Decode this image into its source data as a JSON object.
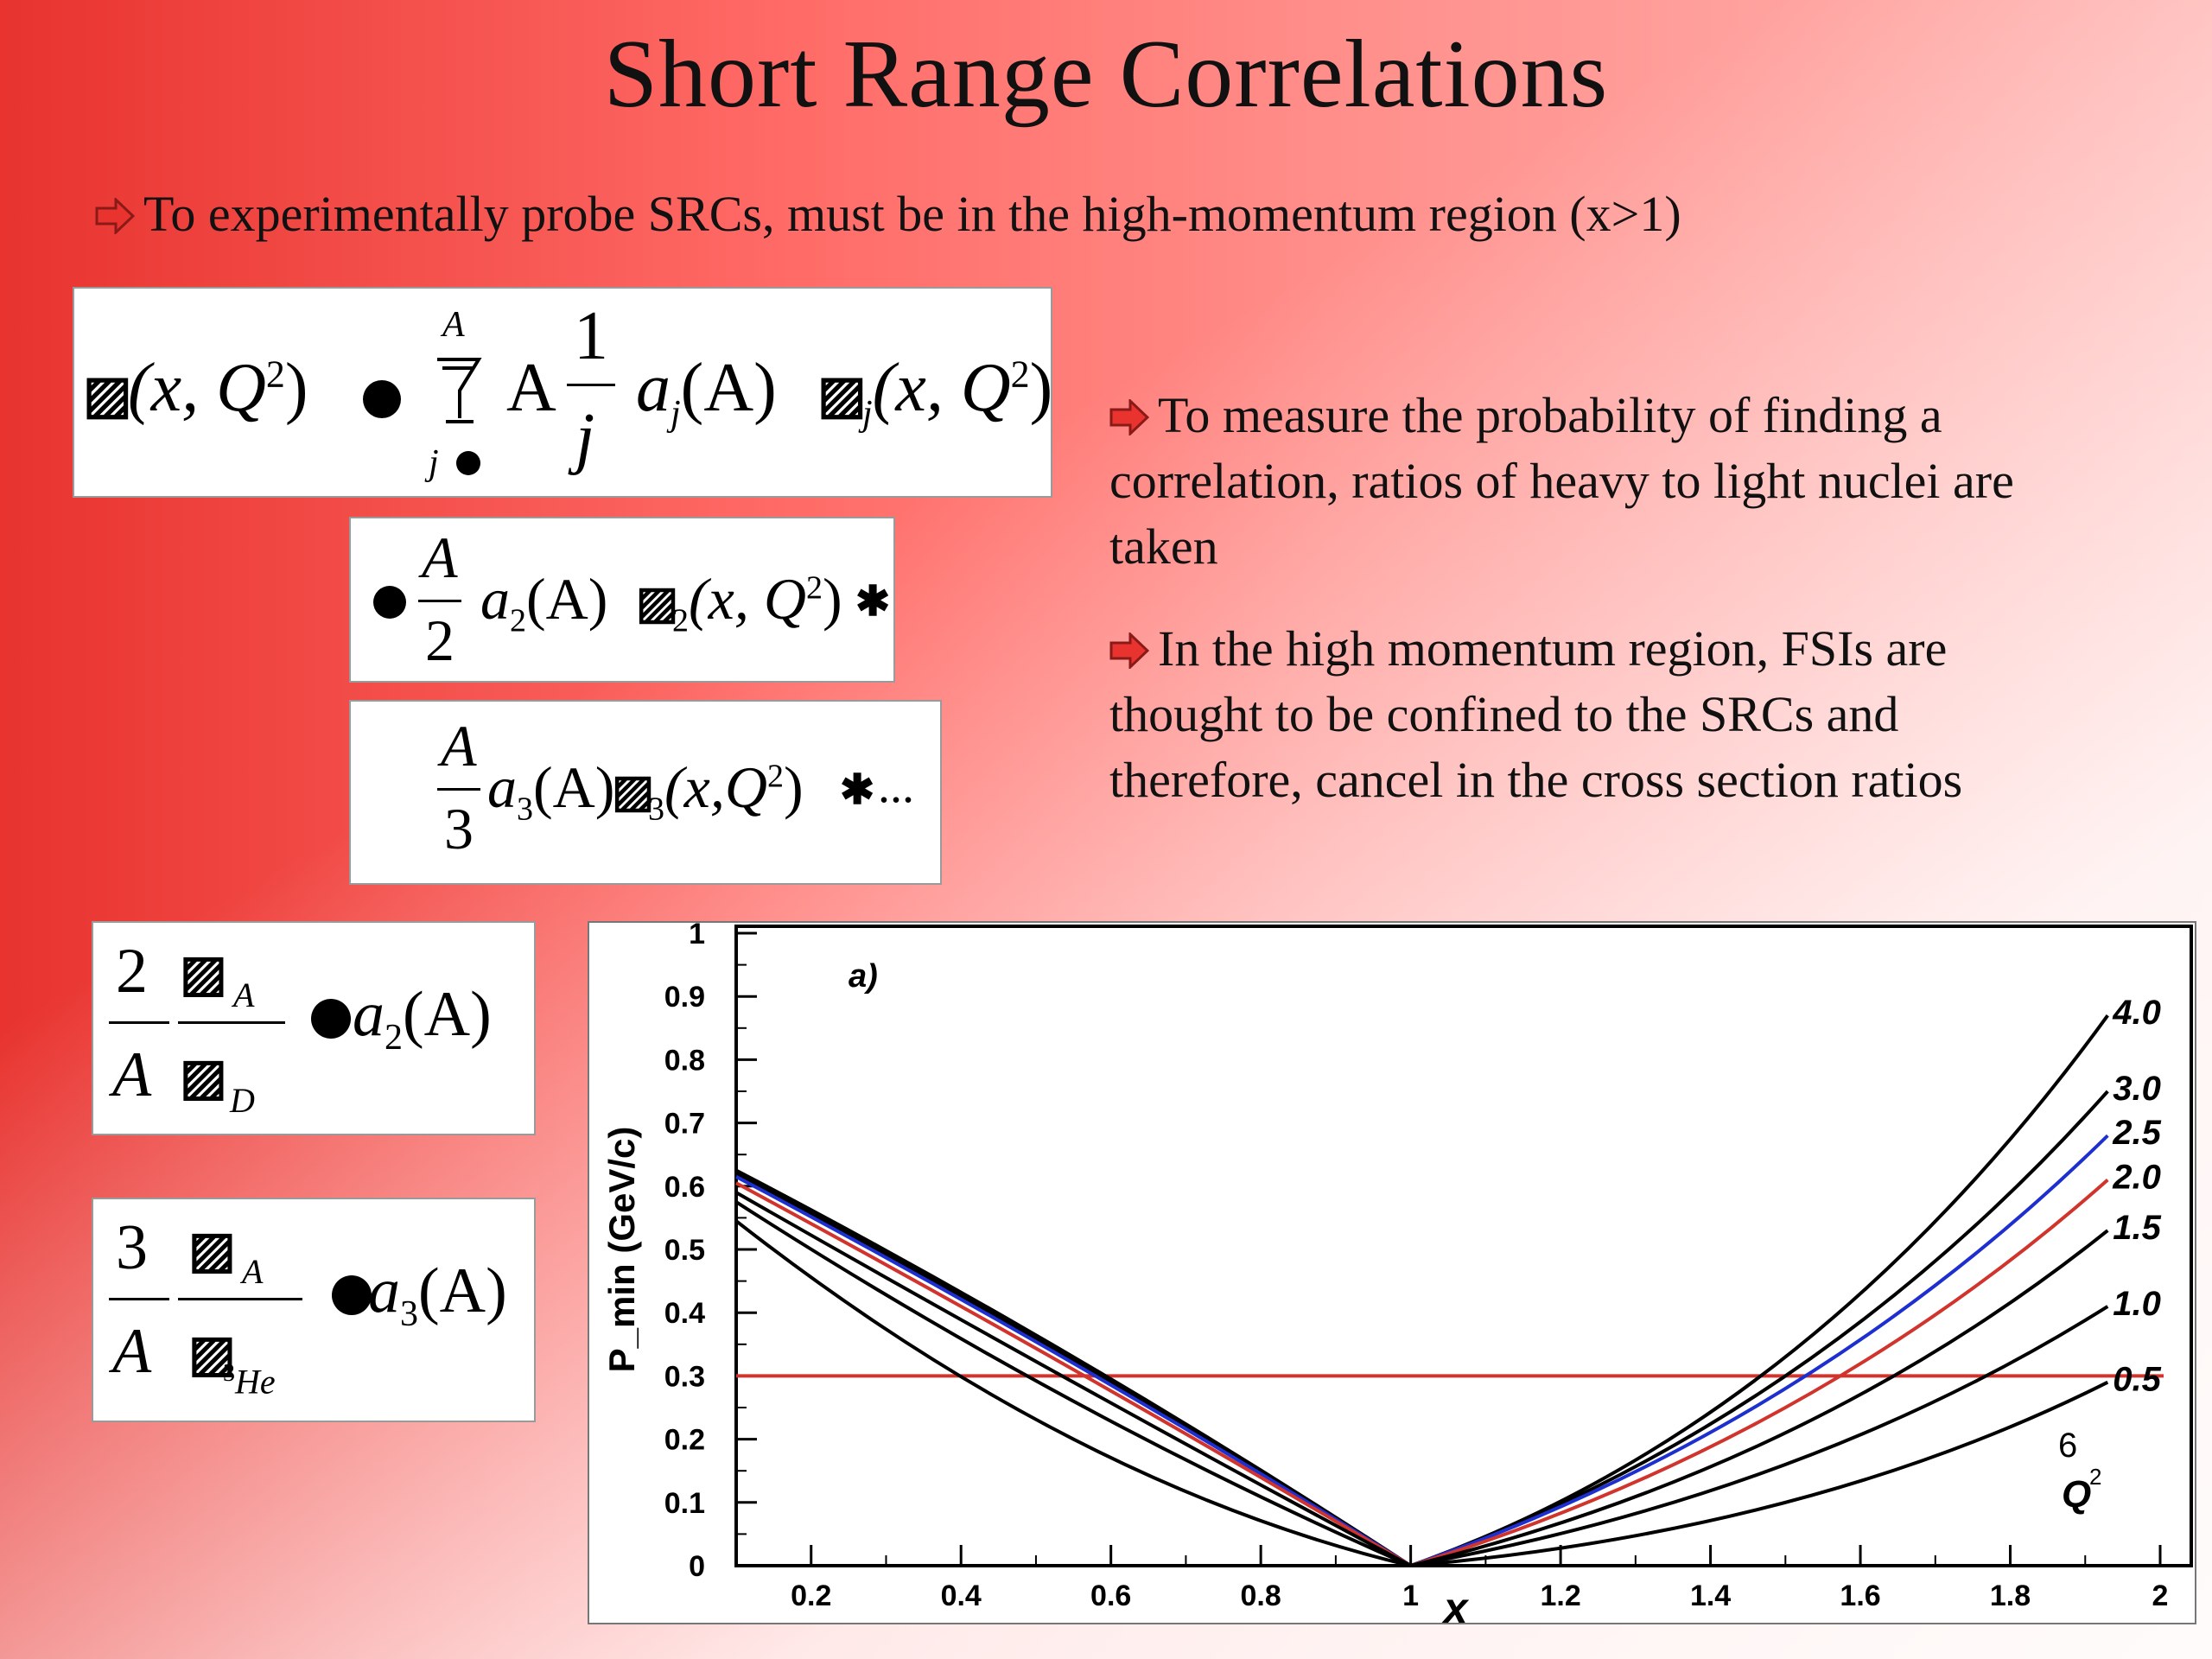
{
  "slide": {
    "title": "Short Range Correlations",
    "bullets": [
      "To experimentally probe SRCs, must be in the high-momentum region (x>1)",
      "To measure the probability of finding a",
      "correlation, ratios of heavy to light nuclei are",
      "taken",
      "In the high momentum region, FSIs are",
      "thought to be confined to the SRCs and",
      "therefore, cancel in the cross section ratios"
    ],
    "accent_color": "#e8332f",
    "arrow_icon": "right-arrow-bullet-icon"
  },
  "equations": {
    "eq1": {
      "lhs": "(x, Q",
      "lhs_sup": "2",
      "lhs_close": ")",
      "sum_top": "A",
      "sum_bottom": "j",
      "factor": "A",
      "frac_num": "1",
      "frac_den": "j",
      "term": "a",
      "term_sub": "j",
      "term_arg": "(A)",
      "sigma_sub": "j",
      "sigma_arg": "(x, Q",
      "sigma_sup": "2",
      "sigma_close": ")"
    },
    "eq2": {
      "num": "A",
      "den": "2",
      "term": "a",
      "sub": "2",
      "arg": "(A)",
      "sigma_sub": "2",
      "sigma_arg": "(x, Q",
      "sup": "2",
      "close": ")"
    },
    "eq3": {
      "num": "A",
      "den": "3",
      "term": "a",
      "sub": "3",
      "arg": "(A)",
      "sigma_sub": "3",
      "sigma_arg": "(x,Q",
      "sup": "2",
      "close": ")",
      "ellipsis": "..."
    },
    "eq4": {
      "num": "2",
      "den": "A",
      "sig_sub_top": "A",
      "sig_sub_bottom": "D",
      "rhs": "a",
      "rhs_sub": "2",
      "rhs_arg": "(A)"
    },
    "eq5": {
      "num": "3",
      "den": "A",
      "sig_sub_top": "A",
      "sig_sub_bottom_sup": "3",
      "sig_sub_bottom": "He",
      "rhs": "a",
      "rhs_sub": "3",
      "rhs_arg": "(A)"
    }
  },
  "chart_data": {
    "type": "line",
    "panel_label": "a)",
    "xlabel": "x",
    "ylabel": "P_min (GeV/c)",
    "xlim": [
      0.1,
      2.0
    ],
    "ylim": [
      0,
      1
    ],
    "x_ticks": [
      "0.2",
      "0.4",
      "0.6",
      "0.8",
      "1",
      "1.2",
      "1.4",
      "1.6",
      "1.8",
      "2"
    ],
    "y_ticks": [
      "0",
      "0.1",
      "0.2",
      "0.3",
      "0.4",
      "0.5",
      "0.6",
      "0.7",
      "0.8",
      "0.9",
      "1"
    ],
    "legend_title": "Q",
    "legend_title_sup": "2",
    "legend_note": "6",
    "reference_line": {
      "y": 0.3,
      "color": "#d0342c"
    },
    "series": [
      {
        "name": "4.0",
        "color": "#000000",
        "left": [
          [
            0.1,
            0.625
          ],
          [
            0.55,
            0.33
          ],
          [
            1.0,
            0.0
          ]
        ],
        "right": [
          [
            1.0,
            0.0
          ],
          [
            1.5,
            0.33
          ],
          [
            1.93,
            0.87
          ]
        ]
      },
      {
        "name": "3.0",
        "color": "#000000",
        "left": [
          [
            0.1,
            0.62
          ],
          [
            0.55,
            0.325
          ],
          [
            1.0,
            0.0
          ]
        ],
        "right": [
          [
            1.0,
            0.0
          ],
          [
            1.5,
            0.3
          ],
          [
            1.93,
            0.75
          ]
        ]
      },
      {
        "name": "2.5",
        "color": "#1e2fd0",
        "left": [
          [
            0.1,
            0.615
          ],
          [
            0.55,
            0.32
          ],
          [
            1.0,
            0.0
          ]
        ],
        "right": [
          [
            1.0,
            0.0
          ],
          [
            1.5,
            0.28
          ],
          [
            1.93,
            0.68
          ]
        ]
      },
      {
        "name": "2.0",
        "color": "#d0342c",
        "left": [
          [
            0.1,
            0.605
          ],
          [
            0.55,
            0.31
          ],
          [
            1.0,
            0.0
          ]
        ],
        "right": [
          [
            1.0,
            0.0
          ],
          [
            1.5,
            0.25
          ],
          [
            1.93,
            0.61
          ]
        ]
      },
      {
        "name": "1.5",
        "color": "#000000",
        "left": [
          [
            0.1,
            0.59
          ],
          [
            0.55,
            0.29
          ],
          [
            1.0,
            0.0
          ]
        ],
        "right": [
          [
            1.0,
            0.0
          ],
          [
            1.5,
            0.21
          ],
          [
            1.93,
            0.53
          ]
        ]
      },
      {
        "name": "1.0",
        "color": "#000000",
        "left": [
          [
            0.1,
            0.575
          ],
          [
            0.55,
            0.26
          ],
          [
            1.0,
            0.0
          ]
        ],
        "right": [
          [
            1.0,
            0.0
          ],
          [
            1.5,
            0.16
          ],
          [
            1.93,
            0.41
          ]
        ]
      },
      {
        "name": "0.5",
        "color": "#000000",
        "left": [
          [
            0.1,
            0.545
          ],
          [
            0.55,
            0.2
          ],
          [
            1.0,
            0.0
          ]
        ],
        "right": [
          [
            1.0,
            0.0
          ],
          [
            1.5,
            0.1
          ],
          [
            1.93,
            0.29
          ]
        ]
      }
    ]
  }
}
